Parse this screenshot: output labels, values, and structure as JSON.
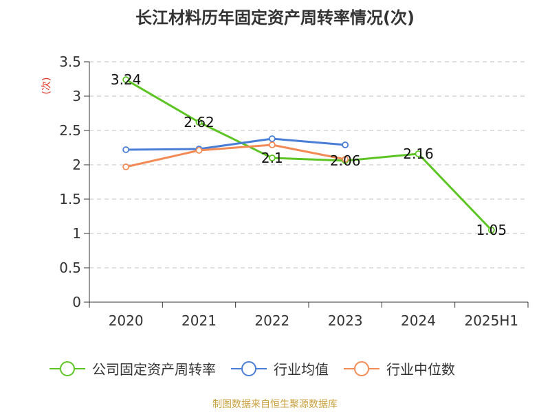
{
  "title": "长江材料历年固定资产周转率情况(次)",
  "source": "制图数据来自恒生聚源数据库",
  "chart_data": {
    "type": "line",
    "unit": "(次)",
    "categories": [
      "2020",
      "2021",
      "2022",
      "2023",
      "2024",
      "2025H1"
    ],
    "yticks": [
      "0",
      "0.5",
      "1",
      "1.5",
      "2",
      "2.5",
      "3",
      "3.5"
    ],
    "ylim": [
      0,
      3.5
    ],
    "grid": true,
    "legend_position": "bottom",
    "series": [
      {
        "name": "公司固定资产周转率",
        "color": "#5cc524",
        "values": [
          3.24,
          2.62,
          2.1,
          2.06,
          2.16,
          1.05
        ],
        "labels": [
          "3.24",
          "2.62",
          "2.1",
          "2.06",
          "2.16",
          "1.05"
        ]
      },
      {
        "name": "行业均值",
        "color": "#4a7ed6",
        "values": [
          2.22,
          2.23,
          2.38,
          2.29,
          null,
          null
        ]
      },
      {
        "name": "行业中位数",
        "color": "#f28a55",
        "values": [
          1.97,
          2.21,
          2.29,
          2.08,
          null,
          null
        ]
      }
    ]
  }
}
